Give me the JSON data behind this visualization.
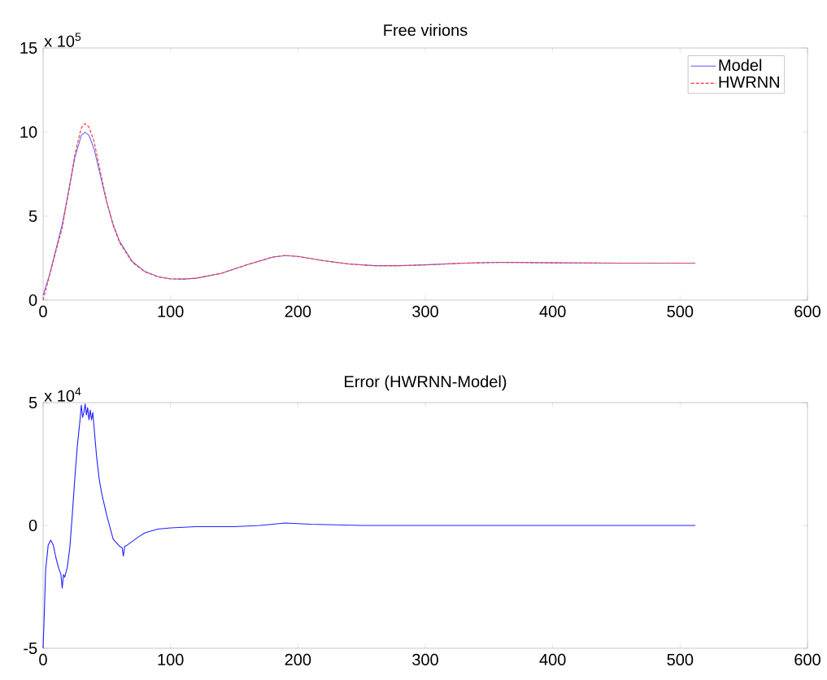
{
  "chart_data": [
    {
      "type": "line",
      "title": "Free virions",
      "annotations": [
        "x 10$^{5}$"
      ],
      "xlim": [
        0,
        600
      ],
      "ylim": [
        0,
        15
      ],
      "xticks": [
        0,
        100,
        200,
        300,
        400,
        500,
        600
      ],
      "yticks": [
        0,
        5,
        10,
        15
      ],
      "legend": "top right",
      "series": [
        {
          "name": "Model",
          "color": "#6666ff",
          "line_style": "solid",
          "x": [
            0,
            5,
            10,
            15,
            20,
            25,
            30,
            33,
            36,
            40,
            45,
            50,
            55,
            60,
            70,
            80,
            90,
            100,
            110,
            120,
            140,
            160,
            180,
            190,
            200,
            220,
            240,
            260,
            280,
            300,
            330,
            360,
            400,
            450,
            512
          ],
          "values": [
            0.3,
            1.5,
            3,
            4.5,
            6.5,
            8.5,
            9.8,
            10.0,
            9.8,
            9.0,
            7.4,
            5.8,
            4.5,
            3.5,
            2.3,
            1.7,
            1.4,
            1.27,
            1.25,
            1.3,
            1.6,
            2.1,
            2.55,
            2.65,
            2.6,
            2.35,
            2.15,
            2.05,
            2.05,
            2.1,
            2.2,
            2.25,
            2.22,
            2.2,
            2.2
          ]
        },
        {
          "name": "HWRNN",
          "color": "#ff3333",
          "line_style": "dashed",
          "x": [
            0,
            5,
            10,
            15,
            20,
            25,
            30,
            33,
            36,
            40,
            45,
            50,
            55,
            60,
            70,
            80,
            90,
            100,
            110,
            120,
            140,
            160,
            180,
            190,
            200,
            220,
            240,
            260,
            280,
            300,
            330,
            360,
            400,
            450,
            512
          ],
          "values": [
            0,
            1.45,
            2.9,
            4.3,
            6.4,
            8.7,
            10.25,
            10.5,
            10.3,
            9.45,
            7.6,
            5.85,
            4.45,
            3.42,
            2.25,
            1.68,
            1.39,
            1.26,
            1.25,
            1.3,
            1.6,
            2.1,
            2.56,
            2.66,
            2.6,
            2.35,
            2.15,
            2.05,
            2.05,
            2.1,
            2.2,
            2.25,
            2.22,
            2.2,
            2.2
          ]
        }
      ]
    },
    {
      "type": "line",
      "title": "Error (HWRNN-Model)",
      "annotations": [
        "x 10$^{4}$"
      ],
      "xlim": [
        0,
        600
      ],
      "ylim": [
        -5,
        5
      ],
      "xticks": [
        0,
        100,
        200,
        300,
        400,
        500,
        600
      ],
      "yticks": [
        -5,
        0,
        5
      ],
      "series": [
        {
          "color": "#2222ff",
          "line_style": "solid",
          "x": [
            0,
            1,
            2,
            4,
            6,
            8,
            10,
            12,
            14,
            15,
            16,
            17,
            19,
            21,
            23,
            25,
            27,
            29,
            30,
            31,
            32,
            33,
            34,
            35,
            36,
            37,
            38,
            39,
            40,
            42,
            44,
            46,
            50,
            55,
            60,
            62,
            63,
            64,
            66,
            70,
            75,
            80,
            90,
            100,
            120,
            150,
            170,
            190,
            210,
            250,
            300,
            350,
            400,
            450,
            512
          ],
          "values": [
            -5,
            -3.5,
            -1.8,
            -0.8,
            -0.6,
            -0.8,
            -1.3,
            -1.7,
            -2.0,
            -2.55,
            -2.0,
            -2.1,
            -1.7,
            -0.9,
            0.5,
            2.0,
            3.3,
            4.3,
            4.9,
            4.4,
            4.6,
            4.95,
            4.5,
            4.8,
            4.3,
            4.7,
            4.3,
            4.6,
            4.0,
            2.8,
            1.9,
            1.3,
            0.4,
            -0.56,
            -0.85,
            -0.9,
            -1.25,
            -0.85,
            -0.8,
            -0.65,
            -0.46,
            -0.3,
            -0.15,
            -0.1,
            -0.05,
            -0.05,
            0.0,
            0.1,
            0.05,
            0.0,
            0.0,
            0.0,
            0.0,
            0.0,
            0.0
          ]
        }
      ]
    }
  ]
}
